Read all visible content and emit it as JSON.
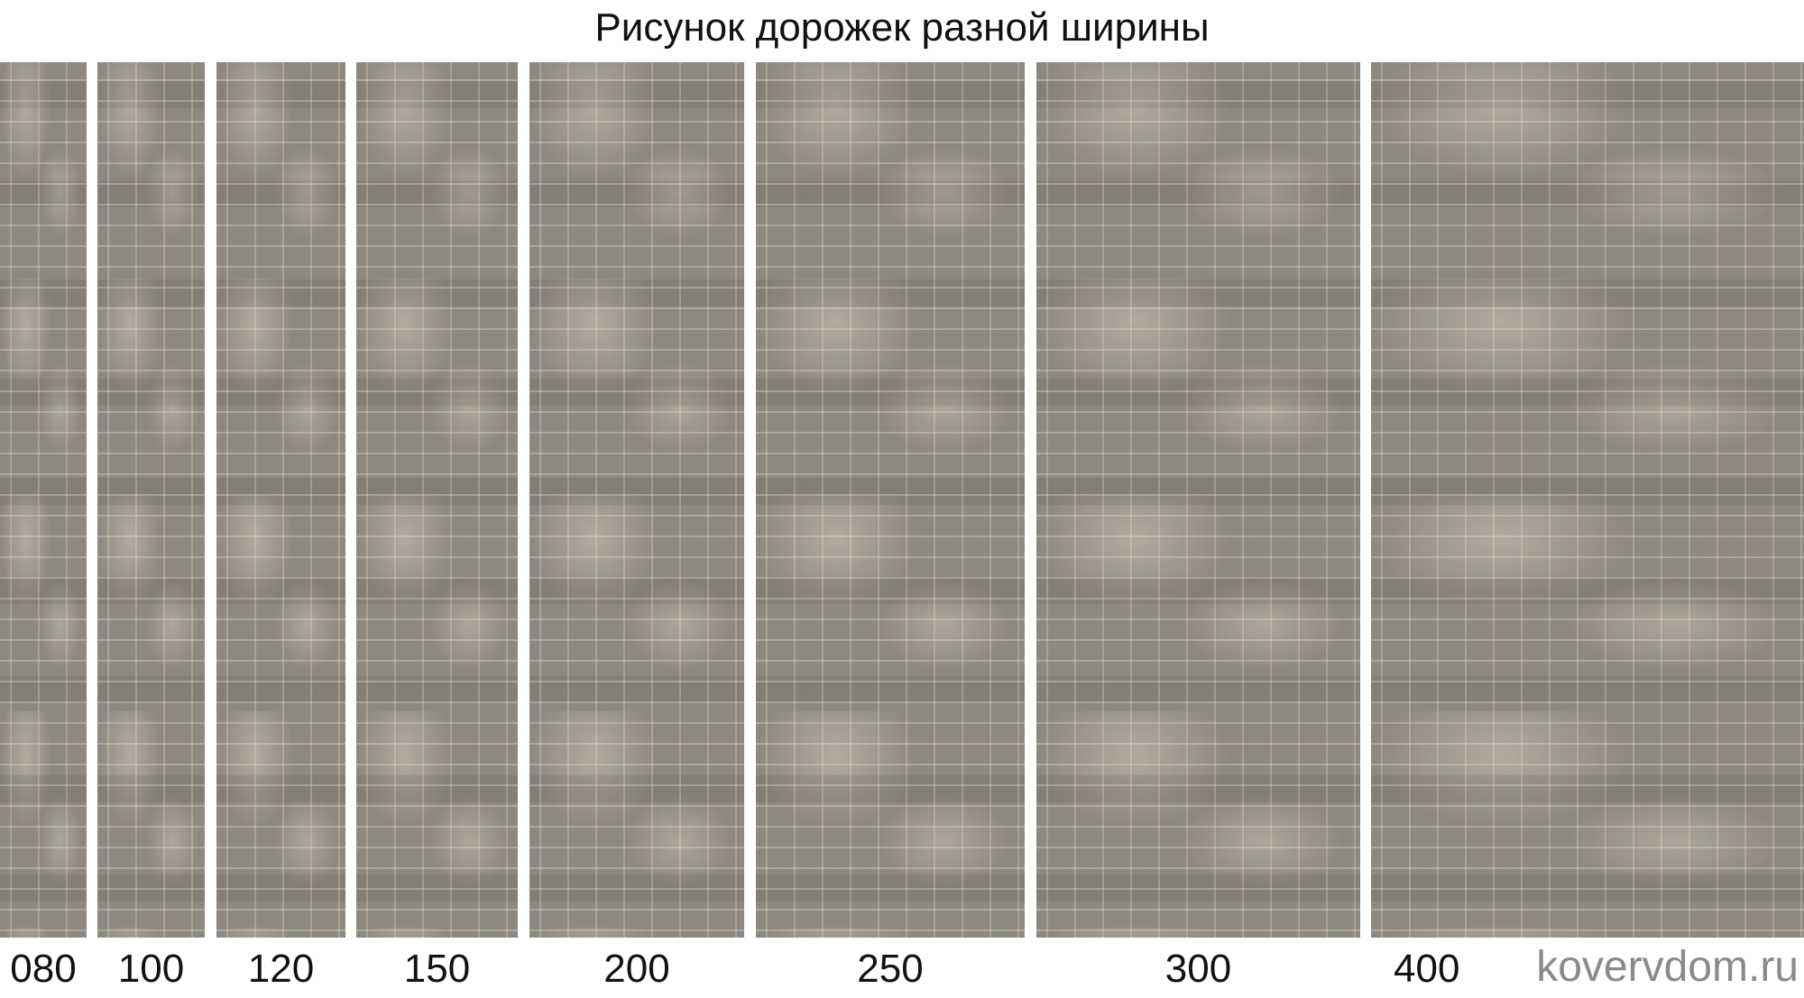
{
  "title": "Рисунок дорожек разной ширины",
  "runners": [
    {
      "width_label": "080"
    },
    {
      "width_label": "100"
    },
    {
      "width_label": "120"
    },
    {
      "width_label": "150"
    },
    {
      "width_label": "200"
    },
    {
      "width_label": "250"
    },
    {
      "width_label": "300"
    },
    {
      "width_label": "400"
    }
  ],
  "watermark": "kovervdom.ru",
  "colors": {
    "rug_base": "#8e8980",
    "rug_highlight": "#e6e0c8"
  }
}
